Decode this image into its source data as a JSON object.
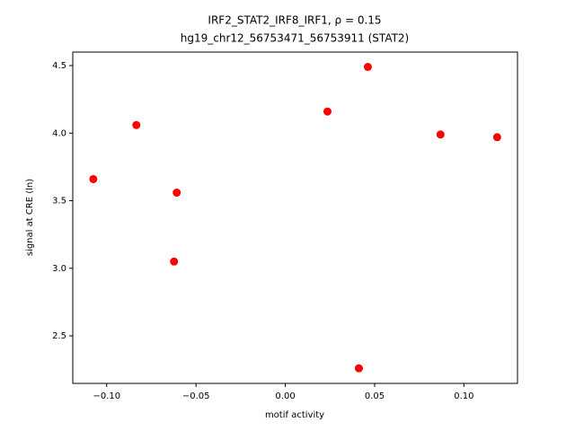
{
  "chart_data": {
    "type": "scatter",
    "title": [
      "IRF2_STAT2_IRF8_IRF1, ρ = 0.15",
      "hg19_chr12_56753471_56753911 (STAT2)"
    ],
    "xlabel": "motif activity",
    "ylabel": "signal at CRE (ln)",
    "color": "#ff0000",
    "x": [
      -0.1075,
      -0.0834,
      -0.0608,
      -0.0623,
      0.0236,
      0.0462,
      0.0869,
      0.1186,
      0.0412
    ],
    "values": [
      3.66,
      4.06,
      3.56,
      3.05,
      4.16,
      4.49,
      3.99,
      3.97,
      2.26
    ],
    "xlim": [
      -0.119,
      0.13
    ],
    "ylim": [
      2.148,
      4.6
    ],
    "xticks": [
      {
        "value": -0.1,
        "label": "−0.10"
      },
      {
        "value": -0.05,
        "label": "−0.05"
      },
      {
        "value": 0,
        "label": "0.00"
      },
      {
        "value": 0.05,
        "label": "0.05"
      },
      {
        "value": 0.1,
        "label": "0.10"
      }
    ],
    "yticks": [
      2.5,
      {
        "value": 3,
        "label": "3.0"
      },
      3.5,
      {
        "value": 4,
        "label": "4.0"
      },
      4.5
    ],
    "grid": false
  }
}
